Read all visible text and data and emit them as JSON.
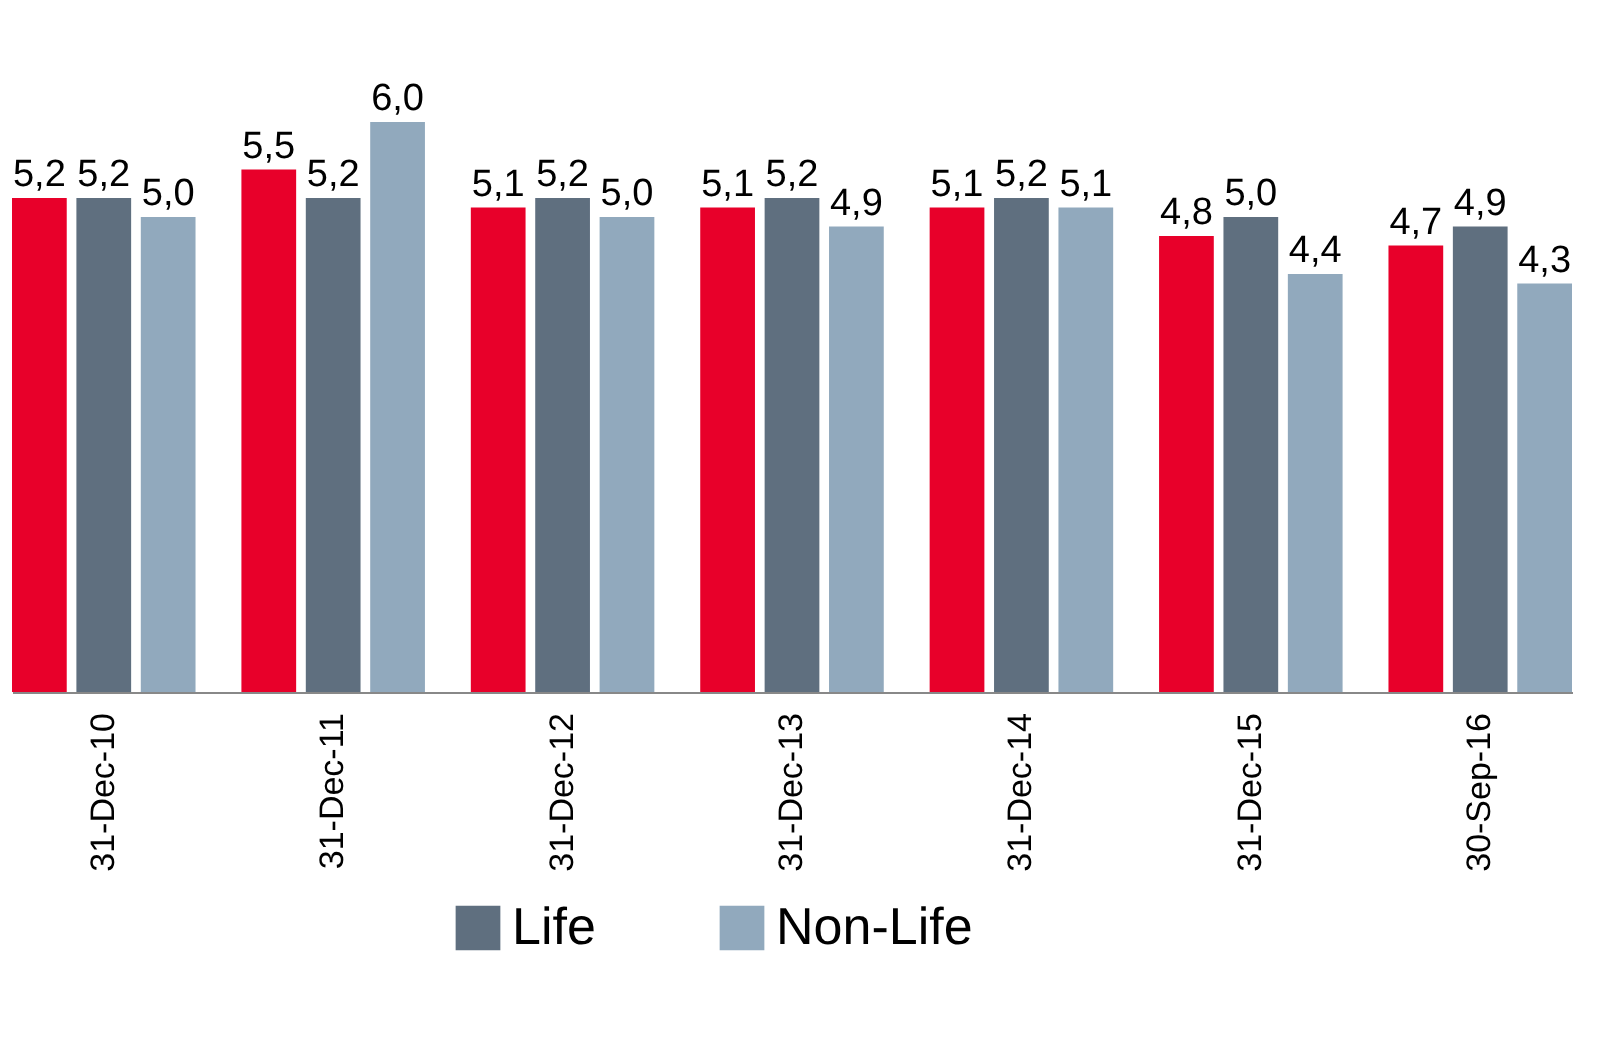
{
  "chart_data": {
    "type": "bar",
    "categories": [
      "31-Dec-10",
      "31-Dec-11",
      "31-Dec-12",
      "31-Dec-13",
      "31-Dec-14",
      "31-Dec-15",
      "30-Sep-16"
    ],
    "series": [
      {
        "color": "#e8002a",
        "values": [
          5.2,
          5.5,
          5.1,
          5.1,
          5.1,
          4.8,
          4.7
        ],
        "value_labels": [
          "5,2",
          "5,5",
          "5,1",
          "5,1",
          "5,1",
          "4,8",
          "4,7"
        ]
      },
      {
        "name": "Life",
        "color": "#5f6f7f",
        "values": [
          5.2,
          5.2,
          5.2,
          5.2,
          5.2,
          5.0,
          4.9
        ],
        "value_labels": [
          "5,2",
          "5,2",
          "5,2",
          "5,2",
          "5,2",
          "5,0",
          "4,9"
        ]
      },
      {
        "name": "Non-Life",
        "color": "#91a9bd",
        "values": [
          5.0,
          6.0,
          5.0,
          4.9,
          5.1,
          4.4,
          4.3
        ],
        "value_labels": [
          "5,0",
          "6,0",
          "5,0",
          "4,9",
          "5,1",
          "4,4",
          "4,3"
        ]
      }
    ],
    "grid": false,
    "legend": "bottom"
  }
}
